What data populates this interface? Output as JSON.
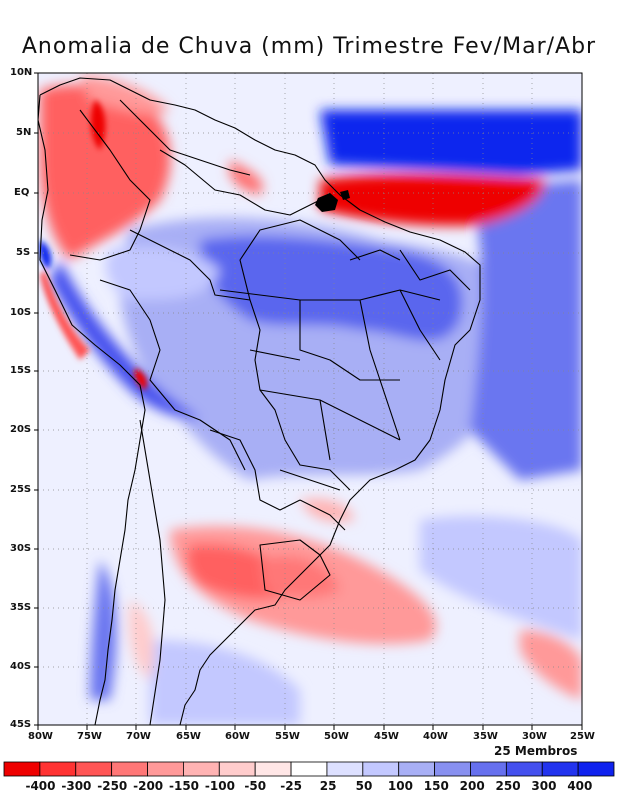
{
  "title": "Anomalia de Chuva (mm) Trimestre Fev/Mar/Abr",
  "members_label": "25 Membros",
  "lat_labels": [
    "10N",
    "5N",
    "EQ",
    "5S",
    "10S",
    "15S",
    "20S",
    "25S",
    "30S",
    "35S",
    "40S",
    "45S"
  ],
  "lon_labels": [
    "80W",
    "75W",
    "70W",
    "65W",
    "60W",
    "55W",
    "50W",
    "45W",
    "40W",
    "35W",
    "30W",
    "25W"
  ],
  "colorbar": {
    "labels": [
      "-400",
      "-300",
      "-250",
      "-200",
      "-150",
      "-100",
      "-50",
      "-25",
      "25",
      "50",
      "100",
      "150",
      "200",
      "250",
      "300",
      "400"
    ],
    "colors": [
      "#ee0000",
      "#ff3333",
      "#ff5555",
      "#ff7777",
      "#ff9999",
      "#ffb3b3",
      "#ffcccc",
      "#ffe6e6",
      "#ffffff",
      "#dde0ff",
      "#c3c8ff",
      "#a8aff5",
      "#8890f0",
      "#6670ee",
      "#4450ee",
      "#2233ee",
      "#0f22ee"
    ]
  },
  "colors": {
    "strong_blue": "#1028ee",
    "mid_blue": "#6a76f0",
    "light_blue": "#c3c8ff",
    "strong_red": "#ee0000",
    "mid_red": "#ff7070",
    "light_red": "#ffc0c0"
  }
}
